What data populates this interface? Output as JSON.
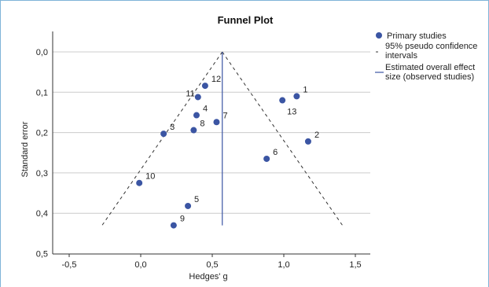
{
  "chart_data": {
    "type": "scatter",
    "title": "Funnel Plot",
    "xlabel": "Hedges' g",
    "ylabel": "Standard error",
    "xlim": [
      -0.6,
      1.6
    ],
    "ylim": [
      0,
      0.5
    ],
    "y_reversed": true,
    "grid": "horizontal",
    "legend_position": "right",
    "x_ticks": [
      {
        "value": -0.5,
        "label": "-0,5"
      },
      {
        "value": 0.0,
        "label": "0,0"
      },
      {
        "value": 0.5,
        "label": "0,5"
      },
      {
        "value": 1.0,
        "label": "1,0"
      },
      {
        "value": 1.5,
        "label": "1,5"
      }
    ],
    "y_ticks": [
      {
        "value": 0.0,
        "label": "0,0"
      },
      {
        "value": 0.1,
        "label": "0,1"
      },
      {
        "value": 0.2,
        "label": "0,2"
      },
      {
        "value": 0.3,
        "label": "0,3"
      },
      {
        "value": 0.4,
        "label": "0,4"
      },
      {
        "value": 0.5,
        "label": "0,5"
      }
    ],
    "series": [
      {
        "name": "Primary studies",
        "color": "#3b55a3",
        "points": [
          {
            "label": "1",
            "x": 1.09,
            "y": 0.11
          },
          {
            "label": "2",
            "x": 1.17,
            "y": 0.222
          },
          {
            "label": "3",
            "x": 0.16,
            "y": 0.203
          },
          {
            "label": "4",
            "x": 0.39,
            "y": 0.157
          },
          {
            "label": "5",
            "x": 0.33,
            "y": 0.382
          },
          {
            "label": "6",
            "x": 0.88,
            "y": 0.265
          },
          {
            "label": "7",
            "x": 0.53,
            "y": 0.174
          },
          {
            "label": "8",
            "x": 0.37,
            "y": 0.194
          },
          {
            "label": "9",
            "x": 0.23,
            "y": 0.43
          },
          {
            "label": "10",
            "x": -0.01,
            "y": 0.325
          },
          {
            "label": "11",
            "x": 0.4,
            "y": 0.112
          },
          {
            "label": "12",
            "x": 0.45,
            "y": 0.084
          },
          {
            "label": "13",
            "x": 0.99,
            "y": 0.12
          }
        ]
      }
    ],
    "pseudo_ci_lines": {
      "name": "95% pseudo confidence intervals",
      "apex": {
        "x": 0.57,
        "y": 0.0
      },
      "left_end": {
        "x": -0.27,
        "y": 0.43
      },
      "right_end": {
        "x": 1.41,
        "y": 0.43
      },
      "style": "dashed",
      "color": "#333333"
    },
    "overall_effect_line": {
      "name": "Estimated overall effect size (observed studies)",
      "x": 0.57,
      "y_range": [
        0.0,
        0.43
      ],
      "color": "#3b55a3"
    },
    "legend": [
      {
        "label": "Primary studies",
        "marker": "circle"
      },
      {
        "label": "95% pseudo confidence intervals",
        "marker": "dashed-line"
      },
      {
        "label": "Estimated overall effect size (observed studies)",
        "marker": "solid-line"
      }
    ]
  }
}
